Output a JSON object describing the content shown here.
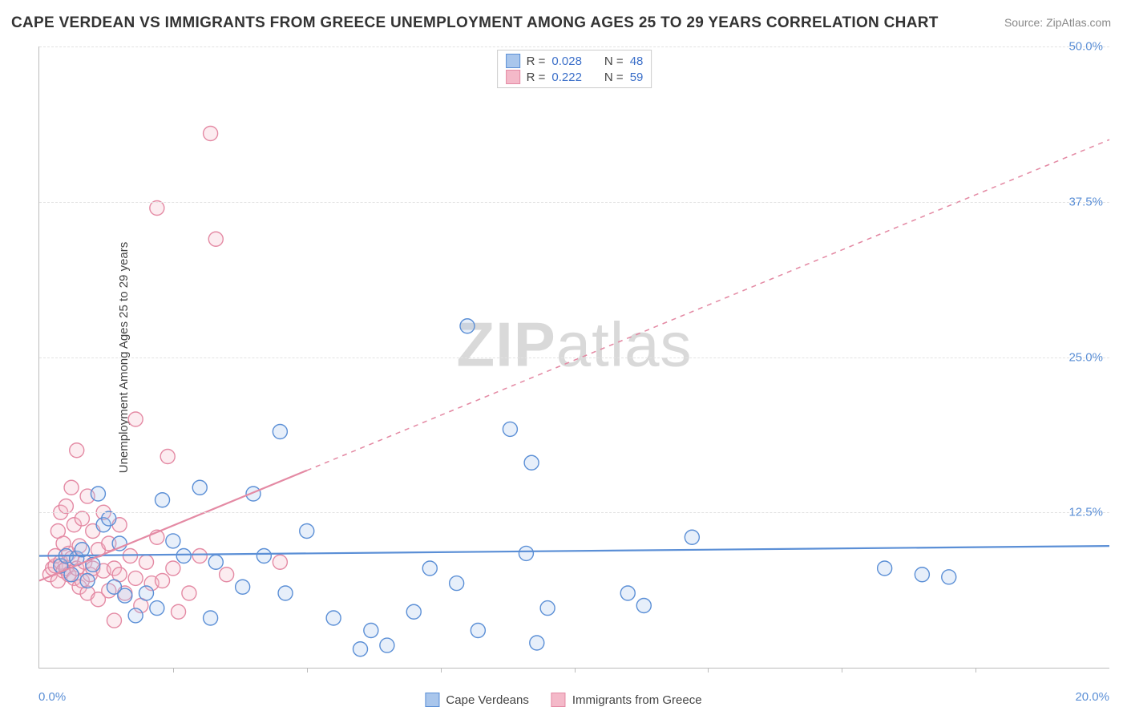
{
  "title": "CAPE VERDEAN VS IMMIGRANTS FROM GREECE UNEMPLOYMENT AMONG AGES 25 TO 29 YEARS CORRELATION CHART",
  "source": "Source: ZipAtlas.com",
  "y_axis_title": "Unemployment Among Ages 25 to 29 years",
  "watermark_a": "ZIP",
  "watermark_b": "atlas",
  "chart": {
    "type": "scatter",
    "xlim": [
      0,
      20
    ],
    "ylim": [
      0,
      50
    ],
    "x_tick_step": 2.5,
    "y_ticks": [
      12.5,
      25.0,
      37.5,
      50.0
    ],
    "y_tick_labels": [
      "12.5%",
      "25.0%",
      "37.5%",
      "50.0%"
    ],
    "x_min_label": "0.0%",
    "x_max_label": "20.0%",
    "grid_color": "#e2e2e2",
    "axis_color": "#bbbbbb",
    "background_color": "#ffffff",
    "marker_radius": 9,
    "marker_stroke_width": 1.4,
    "marker_fill_opacity": 0.28,
    "trend_line_width": 2.2,
    "trend_dash": "6,6"
  },
  "series": [
    {
      "key": "cape_verdeans",
      "label": "Cape Verdeans",
      "color_stroke": "#5b8fd6",
      "color_fill": "#a9c6ec",
      "R_label": "R =",
      "R": "0.028",
      "N_label": "N =",
      "N": "48",
      "trend": {
        "x1": 0,
        "y1": 9.0,
        "x2": 20,
        "y2": 9.8,
        "solid_until_x": 20
      },
      "points": [
        [
          0.4,
          8.2
        ],
        [
          0.5,
          9.0
        ],
        [
          0.6,
          7.5
        ],
        [
          0.7,
          8.8
        ],
        [
          0.8,
          9.5
        ],
        [
          0.9,
          7.0
        ],
        [
          1.0,
          8.3
        ],
        [
          1.1,
          14.0
        ],
        [
          1.2,
          11.5
        ],
        [
          1.3,
          12.0
        ],
        [
          1.4,
          6.5
        ],
        [
          1.5,
          10.0
        ],
        [
          1.6,
          5.8
        ],
        [
          1.8,
          4.2
        ],
        [
          2.0,
          6.0
        ],
        [
          2.2,
          4.8
        ],
        [
          2.3,
          13.5
        ],
        [
          2.5,
          10.2
        ],
        [
          2.7,
          9.0
        ],
        [
          3.0,
          14.5
        ],
        [
          3.2,
          4.0
        ],
        [
          3.3,
          8.5
        ],
        [
          3.8,
          6.5
        ],
        [
          4.0,
          14.0
        ],
        [
          4.2,
          9.0
        ],
        [
          4.5,
          19.0
        ],
        [
          4.6,
          6.0
        ],
        [
          5.0,
          11.0
        ],
        [
          5.5,
          4.0
        ],
        [
          6.0,
          1.5
        ],
        [
          6.2,
          3.0
        ],
        [
          6.5,
          1.8
        ],
        [
          7.0,
          4.5
        ],
        [
          7.3,
          8.0
        ],
        [
          7.8,
          6.8
        ],
        [
          8.0,
          27.5
        ],
        [
          8.2,
          3.0
        ],
        [
          8.8,
          19.2
        ],
        [
          9.1,
          9.2
        ],
        [
          9.2,
          16.5
        ],
        [
          9.3,
          2.0
        ],
        [
          9.5,
          4.8
        ],
        [
          11.0,
          6.0
        ],
        [
          11.3,
          5.0
        ],
        [
          12.2,
          10.5
        ],
        [
          15.8,
          8.0
        ],
        [
          16.5,
          7.5
        ],
        [
          17.0,
          7.3
        ]
      ]
    },
    {
      "key": "immigrants_greece",
      "label": "Immigrants from Greece",
      "color_stroke": "#e48aa4",
      "color_fill": "#f4b9c9",
      "R_label": "R =",
      "R": "0.222",
      "N_label": "N =",
      "N": "59",
      "trend": {
        "x1": 0,
        "y1": 7.0,
        "x2": 20,
        "y2": 42.5,
        "solid_until_x": 5.0
      },
      "points": [
        [
          0.2,
          7.5
        ],
        [
          0.25,
          8.0
        ],
        [
          0.3,
          8.2
        ],
        [
          0.3,
          9.0
        ],
        [
          0.35,
          7.0
        ],
        [
          0.35,
          11.0
        ],
        [
          0.4,
          8.5
        ],
        [
          0.4,
          12.5
        ],
        [
          0.45,
          7.8
        ],
        [
          0.45,
          10.0
        ],
        [
          0.5,
          8.0
        ],
        [
          0.5,
          13.0
        ],
        [
          0.55,
          7.5
        ],
        [
          0.55,
          9.2
        ],
        [
          0.6,
          8.8
        ],
        [
          0.6,
          14.5
        ],
        [
          0.65,
          7.2
        ],
        [
          0.65,
          11.5
        ],
        [
          0.7,
          8.0
        ],
        [
          0.7,
          17.5
        ],
        [
          0.75,
          6.5
        ],
        [
          0.75,
          9.8
        ],
        [
          0.8,
          7.0
        ],
        [
          0.8,
          12.0
        ],
        [
          0.85,
          8.5
        ],
        [
          0.9,
          6.0
        ],
        [
          0.9,
          13.8
        ],
        [
          0.95,
          7.5
        ],
        [
          1.0,
          8.0
        ],
        [
          1.0,
          11.0
        ],
        [
          1.1,
          5.5
        ],
        [
          1.1,
          9.5
        ],
        [
          1.2,
          7.8
        ],
        [
          1.2,
          12.5
        ],
        [
          1.3,
          6.2
        ],
        [
          1.3,
          10.0
        ],
        [
          1.4,
          8.0
        ],
        [
          1.4,
          3.8
        ],
        [
          1.5,
          7.5
        ],
        [
          1.5,
          11.5
        ],
        [
          1.6,
          6.0
        ],
        [
          1.7,
          9.0
        ],
        [
          1.8,
          7.2
        ],
        [
          1.8,
          20.0
        ],
        [
          1.9,
          5.0
        ],
        [
          2.0,
          8.5
        ],
        [
          2.1,
          6.8
        ],
        [
          2.2,
          10.5
        ],
        [
          2.2,
          37.0
        ],
        [
          2.3,
          7.0
        ],
        [
          2.4,
          17.0
        ],
        [
          2.5,
          8.0
        ],
        [
          2.6,
          4.5
        ],
        [
          2.8,
          6.0
        ],
        [
          3.0,
          9.0
        ],
        [
          3.2,
          43.0
        ],
        [
          3.3,
          34.5
        ],
        [
          3.5,
          7.5
        ],
        [
          4.5,
          8.5
        ]
      ]
    }
  ]
}
